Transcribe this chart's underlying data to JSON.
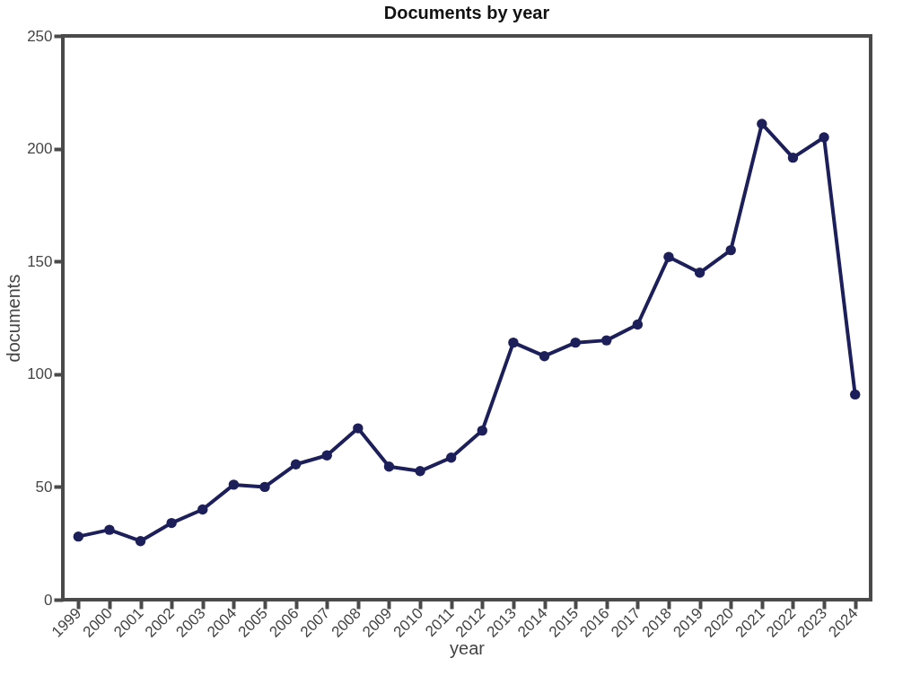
{
  "chart_data": {
    "type": "line",
    "title": "Documents by year",
    "xlabel": "year",
    "ylabel": "documents",
    "categories": [
      "1999",
      "2000",
      "2001",
      "2002",
      "2003",
      "2004",
      "2005",
      "2006",
      "2007",
      "2008",
      "2009",
      "2010",
      "2011",
      "2012",
      "2013",
      "2014",
      "2015",
      "2016",
      "2017",
      "2018",
      "2019",
      "2020",
      "2021",
      "2022",
      "2023",
      "2024"
    ],
    "series": [
      {
        "color": "#1c1f5a",
        "values": [
          28,
          31,
          26,
          34,
          40,
          51,
          50,
          60,
          64,
          76,
          59,
          57,
          63,
          75,
          114,
          108,
          114,
          115,
          122,
          152,
          145,
          155,
          211,
          196,
          205,
          91
        ]
      }
    ],
    "ylim": [
      0,
      250
    ],
    "yticks": [
      0,
      50,
      100,
      150,
      200,
      250
    ],
    "grid": false,
    "marker": "circle",
    "line_style": "solid"
  }
}
